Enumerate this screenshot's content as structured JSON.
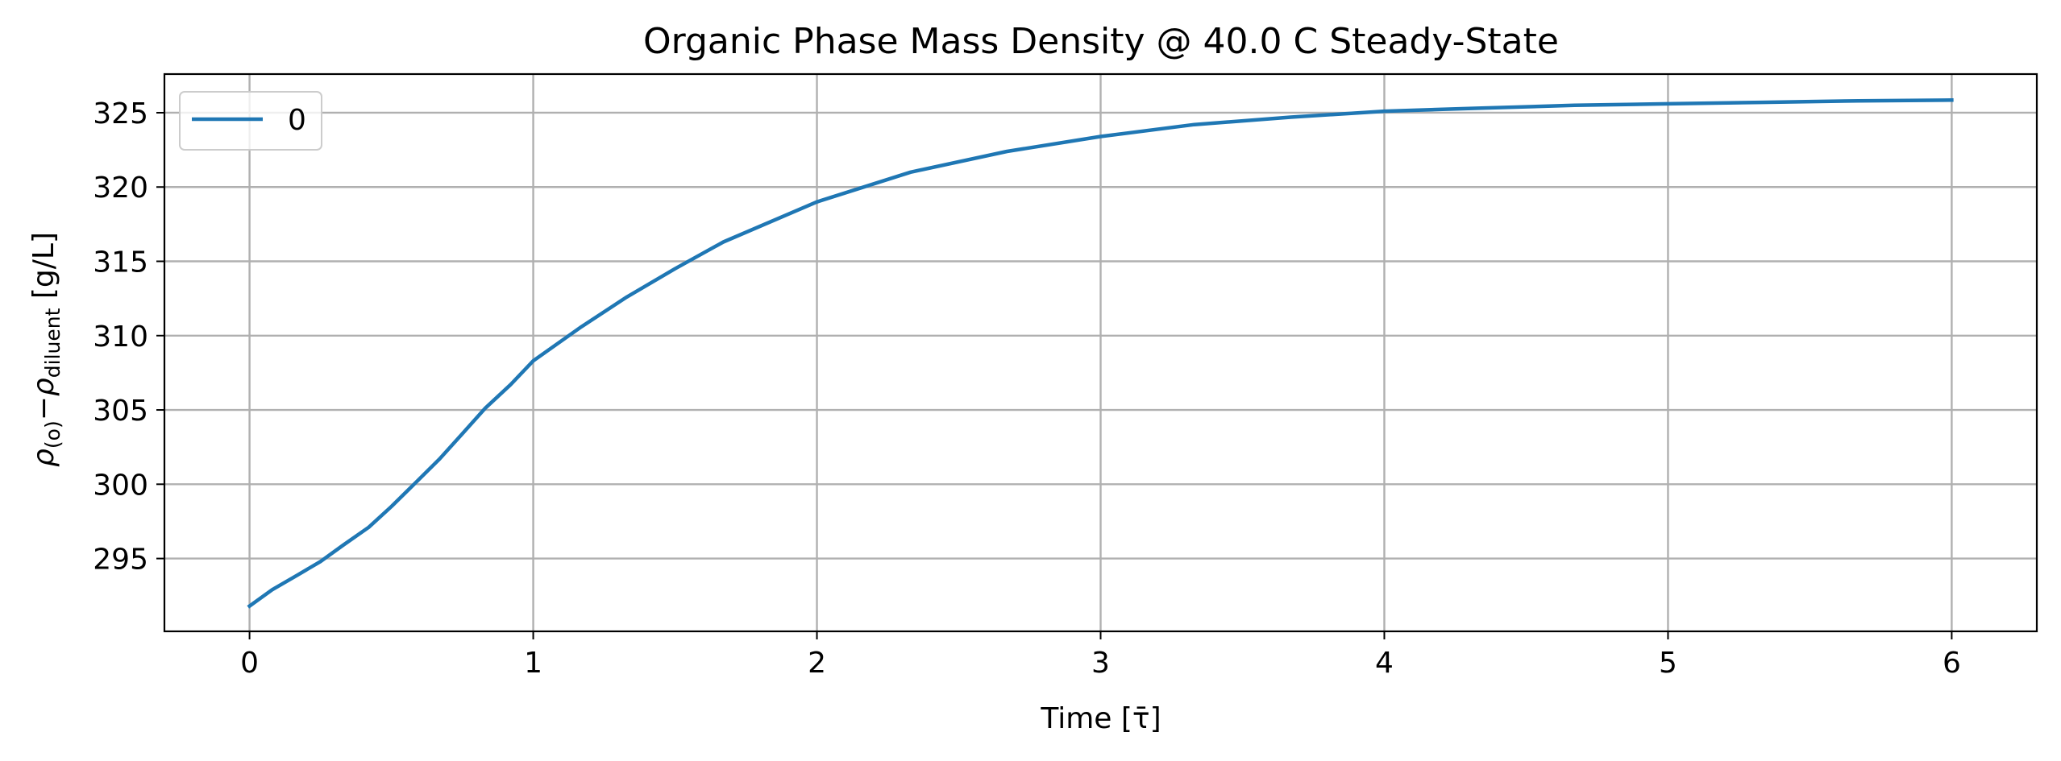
{
  "chart_data": {
    "type": "line",
    "title": "Organic Phase Mass Density @ 40.0 C Steady-State",
    "xlabel": "Time [τ̄]",
    "ylabel": {
      "rho": "ρ",
      "sub_o": "(o)",
      "minus": "−",
      "sub_diluent": "diluent",
      "unit": " [g/L]"
    },
    "xlim": [
      -0.3,
      6.3
    ],
    "ylim": [
      290.1,
      327.6
    ],
    "xticks": [
      0,
      1,
      2,
      3,
      4,
      5,
      6
    ],
    "xtick_labels": [
      "0",
      "1",
      "2",
      "3",
      "4",
      "5",
      "6"
    ],
    "yticks": [
      295,
      300,
      305,
      310,
      315,
      320,
      325
    ],
    "ytick_labels": [
      "295",
      "300",
      "305",
      "310",
      "315",
      "320",
      "325"
    ],
    "grid": true,
    "legend_position": "upper-left",
    "series": [
      {
        "name": "0",
        "color": "#1f77b4",
        "x": [
          0,
          0.08,
          0.17,
          0.25,
          0.33,
          0.42,
          0.5,
          0.58,
          0.67,
          0.75,
          0.83,
          0.92,
          1.0,
          1.17,
          1.33,
          1.5,
          1.67,
          2.0,
          2.33,
          2.67,
          3.0,
          3.33,
          3.67,
          4.0,
          4.33,
          4.67,
          5.0,
          5.33,
          5.67,
          6.0
        ],
        "y": [
          291.8,
          292.9,
          293.9,
          294.8,
          295.9,
          297.1,
          298.5,
          300.0,
          301.7,
          303.4,
          305.1,
          306.7,
          308.3,
          310.6,
          312.6,
          314.5,
          316.3,
          319.0,
          321.0,
          322.4,
          323.4,
          324.2,
          324.7,
          325.1,
          325.3,
          325.5,
          325.6,
          325.7,
          325.8,
          325.85
        ]
      }
    ]
  }
}
